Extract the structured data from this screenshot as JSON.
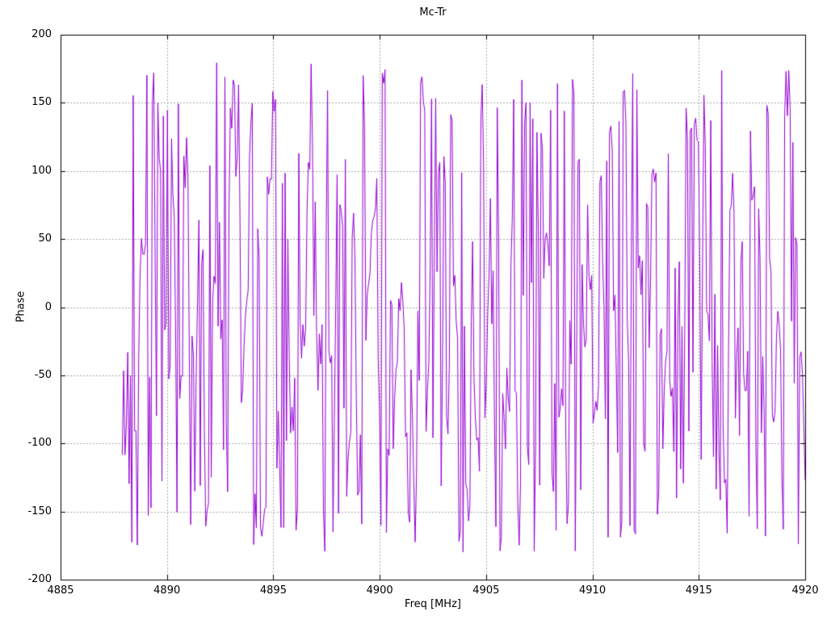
{
  "chart_data": {
    "type": "line",
    "title": "Mc-Tr",
    "xlabel": "Freq [MHz]",
    "ylabel": "Phase",
    "xlim": [
      4885,
      4920
    ],
    "ylim": [
      -200,
      200
    ],
    "xticks": [
      4885,
      4890,
      4895,
      4900,
      4905,
      4910,
      4915,
      4920
    ],
    "yticks": [
      200,
      150,
      100,
      50,
      0,
      -50,
      -100,
      -150,
      -200
    ],
    "grid": true,
    "grid_style": "dashed",
    "grid_color": "#a8a8a8",
    "border_color": "#000000",
    "background": "#ffffff",
    "legend_position": "none",
    "series": [
      {
        "name": "Phase",
        "style": "lines",
        "color": "#9400d3",
        "line_width": 1,
        "x_data_range": [
          4887.9,
          4920.0
        ],
        "n_points": 500,
        "phase_wrap_deg": [
          -180,
          180
        ],
        "description": "Phase-wrapped noise signal: values jump pseudo-randomly within [-180,180], producing dense vertical strokes across the band 4888-4920 MHz; no data left of 4888 MHz.",
        "generator": {
          "algorithm": "mulberry32-random-walk-wrapped",
          "seed": 9,
          "small_step_probability": 0.32,
          "small_step_scale": 40,
          "large_step_scale": 330
        }
      }
    ]
  }
}
